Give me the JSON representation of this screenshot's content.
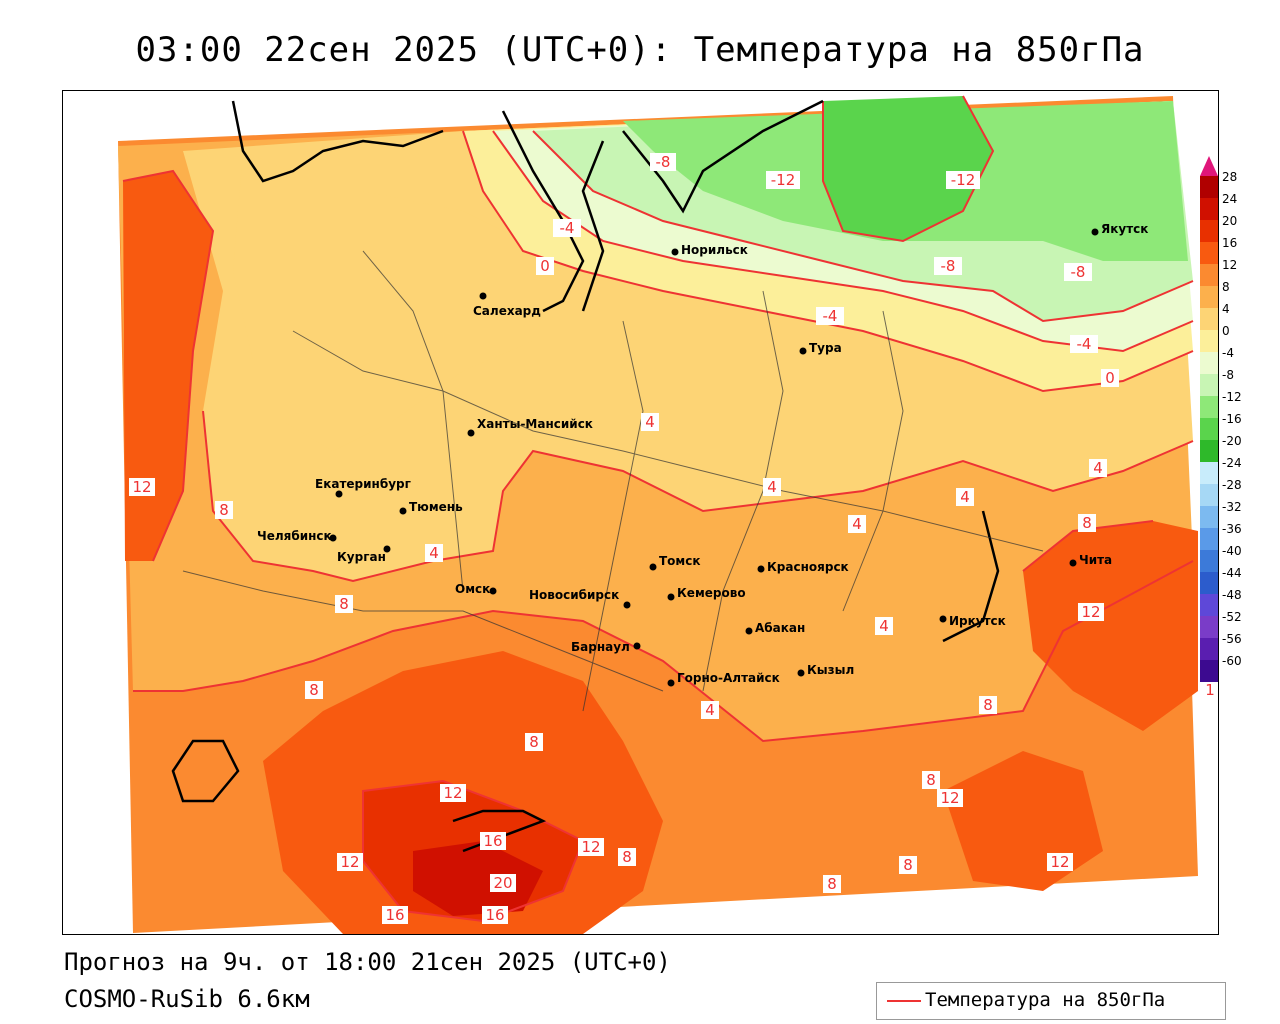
{
  "header": {
    "title": "03:00 22сен 2025 (UTC+0): Температура на 850гПа"
  },
  "footer": {
    "forecast": "Прогноз на 9ч. от 18:00 21сен 2025 (UTC+0)",
    "model": "COSMO-RuSib 6.6км"
  },
  "legend": {
    "label": "Температура на 850гПа",
    "line_color": "#ee3333"
  },
  "colorbar": {
    "labels": [
      "28",
      "24",
      "20",
      "16",
      "12",
      "8",
      "4",
      "0",
      "-4",
      "-8",
      "-12",
      "-16",
      "-20",
      "-24",
      "-28",
      "-32",
      "-36",
      "-40",
      "-44",
      "-48",
      "-52",
      "-56",
      "-60"
    ],
    "colors": [
      "#b00000",
      "#d01000",
      "#e83000",
      "#f85a10",
      "#fb8a30",
      "#fcb04c",
      "#fdd475",
      "#fcef9a",
      "#ecfbd0",
      "#c8f5b4",
      "#8ee878",
      "#5ad44c",
      "#2eb92a",
      "#c8ecfb",
      "#a6d8f5",
      "#7cbaf0",
      "#5a9ae8",
      "#3c7ad9",
      "#2c5ccc",
      "#5e48d8",
      "#7a3cc8",
      "#5a1eb0",
      "#3c0a90"
    ],
    "top_arrow_color": "#e0167a"
  },
  "cities": [
    {
      "name": "Салехард"
    },
    {
      "name": "Норильск"
    },
    {
      "name": "Якутск"
    },
    {
      "name": "Тура"
    },
    {
      "name": "Ханты-Мансийск"
    },
    {
      "name": "Екатеринбург"
    },
    {
      "name": "Тюмень"
    },
    {
      "name": "Челябинск"
    },
    {
      "name": "Курган"
    },
    {
      "name": "Омск"
    },
    {
      "name": "Новосибирск"
    },
    {
      "name": "Томск"
    },
    {
      "name": "Кемерово"
    },
    {
      "name": "Красноярск"
    },
    {
      "name": "Барнаул"
    },
    {
      "name": "Абакан"
    },
    {
      "name": "Горно-Алтайск"
    },
    {
      "name": "Кызыл"
    },
    {
      "name": "Иркутск"
    },
    {
      "name": "Чита"
    }
  ],
  "isoline_labels": [
    "-8",
    "-12",
    "-12",
    "-8",
    "-8",
    "-4",
    "-4",
    "-4",
    "0",
    "0",
    "4",
    "4",
    "4",
    "4",
    "4",
    "4",
    "4",
    "4",
    "8",
    "8",
    "8",
    "8",
    "8",
    "8",
    "8",
    "8",
    "8",
    "12",
    "12",
    "12",
    "12",
    "12",
    "12",
    "16",
    "16",
    "16",
    "20",
    "12",
    "8",
    "1"
  ]
}
